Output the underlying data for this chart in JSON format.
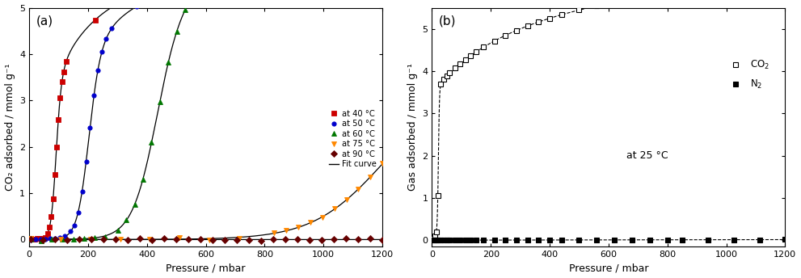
{
  "panel_a": {
    "xlabel": "Pressure / mbar",
    "ylabel": "CO₂ adsorbed / mmol g⁻¹",
    "ylim": [
      -0.15,
      5.0
    ],
    "xlim": [
      0,
      1200
    ],
    "yticks": [
      0,
      1,
      2,
      3,
      4,
      5
    ],
    "xticks": [
      0,
      200,
      400,
      600,
      800,
      1000,
      1200
    ],
    "models": [
      {
        "step": 90,
        "q_hi": 6.5,
        "K_hi": 0.012,
        "q_lo": 0.03,
        "K_lo": 0.0005,
        "color": "#cc0000",
        "marker": "s",
        "label": "at 40 °C"
      },
      {
        "step": 200,
        "q_hi": 7.0,
        "K_hi": 0.007,
        "q_lo": 0.03,
        "K_lo": 0.0003,
        "color": "#0000cc",
        "marker": "o",
        "label": "at 50 °C"
      },
      {
        "step": 430,
        "q_hi": 8.0,
        "K_hi": 0.004,
        "q_lo": 0.1,
        "K_lo": 0.0003,
        "color": "#007700",
        "marker": "^",
        "label": "at 60 °C"
      },
      {
        "step": 1190,
        "q_hi": 4.0,
        "K_hi": 0.003,
        "q_lo": 0.0,
        "K_lo": 0.0003,
        "color": "#ff8800",
        "marker": "v",
        "label": "at 75 °C"
      },
      {
        "step": 99999,
        "q_hi": 0.55,
        "K_hi": 0.0007,
        "q_lo": 0.0,
        "K_lo": 0.0,
        "color": "#660000",
        "marker": "D",
        "label": "at 90 °C"
      }
    ]
  },
  "panel_b": {
    "xlabel": "Pressure / mbar",
    "ylabel": "Gas adsorbed / mmol g⁻¹",
    "ylim": [
      -0.15,
      5.5
    ],
    "xlim": [
      0,
      1200
    ],
    "yticks": [
      0,
      1,
      2,
      3,
      4,
      5
    ],
    "xticks": [
      0,
      200,
      400,
      600,
      800,
      1000,
      1200
    ],
    "annotation": "at 25 °C"
  }
}
